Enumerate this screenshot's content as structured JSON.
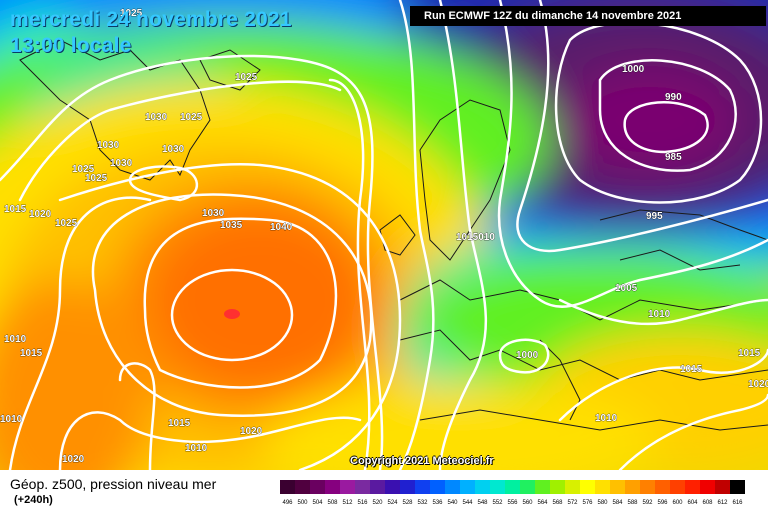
{
  "title": {
    "date": "mercredi 24 novembre 2021",
    "time": "13:00 locale"
  },
  "run_label": "Run ECMWF 12Z du dimanche 14 novembre 2021",
  "copyright": "Copyright 2021 Meteociel.fr",
  "description": "Géop. z500, pression niveau mer",
  "lead_time": "(+240h)",
  "isobar_labels": [
    {
      "id": "l1025a",
      "text": "1025"
    },
    {
      "id": "l1025b",
      "text": "1025"
    },
    {
      "id": "l1030a",
      "text": "1030"
    },
    {
      "id": "l1025c",
      "text": "1025"
    },
    {
      "id": "l1030b",
      "text": "1030"
    },
    {
      "id": "l1030c",
      "text": "1030"
    },
    {
      "id": "l1030d",
      "text": "1030"
    },
    {
      "id": "l1025d",
      "text": "1025"
    },
    {
      "id": "l1025e",
      "text": "1025"
    },
    {
      "id": "l1015a",
      "text": "1015"
    },
    {
      "id": "l1020a",
      "text": "1020"
    },
    {
      "id": "l1025f",
      "text": "1025"
    },
    {
      "id": "l1030e",
      "text": "1030"
    },
    {
      "id": "l1035",
      "text": "1035"
    },
    {
      "id": "l1040",
      "text": "1040"
    },
    {
      "id": "l1010a",
      "text": "1010"
    },
    {
      "id": "l1015b",
      "text": "1015"
    },
    {
      "id": "l1010b",
      "text": "1010"
    },
    {
      "id": "l1015c",
      "text": "1015"
    },
    {
      "id": "l1020b",
      "text": "1020"
    },
    {
      "id": "l1010c",
      "text": "1010"
    },
    {
      "id": "l1020c",
      "text": "1020"
    },
    {
      "id": "l1015010",
      "text": "1015010"
    },
    {
      "id": "l1000a",
      "text": "1000"
    },
    {
      "id": "l990",
      "text": "990"
    },
    {
      "id": "l985",
      "text": "985"
    },
    {
      "id": "l995",
      "text": "995"
    },
    {
      "id": "l1005",
      "text": "1005"
    },
    {
      "id": "l1010d",
      "text": "1010"
    },
    {
      "id": "l1000b",
      "text": "1000"
    },
    {
      "id": "l1015d",
      "text": "1015"
    },
    {
      "id": "l1015e",
      "text": "1015"
    },
    {
      "id": "l1010e",
      "text": "1010"
    },
    {
      "id": "l1020d",
      "text": "1020"
    }
  ],
  "color_scale": {
    "labels": [
      "496",
      "500",
      "504",
      "508",
      "512",
      "516",
      "520",
      "524",
      "528",
      "532",
      "536",
      "540",
      "544",
      "548",
      "552",
      "556",
      "560",
      "564",
      "568",
      "572",
      "576",
      "580",
      "584",
      "588",
      "592",
      "596",
      "600",
      "604",
      "608",
      "612",
      "616"
    ],
    "colors": [
      "#3a0030",
      "#50003f",
      "#6a0060",
      "#86007f",
      "#9a1aa0",
      "#7a2aa0",
      "#5a1aa0",
      "#3a10b0",
      "#2020d0",
      "#1040f0",
      "#0060ff",
      "#0088ff",
      "#00b0ff",
      "#00d0f0",
      "#00e8d0",
      "#00f0a0",
      "#20f060",
      "#60f020",
      "#a0f000",
      "#d8f000",
      "#ffff00",
      "#ffe000",
      "#ffc000",
      "#ffa000",
      "#ff8000",
      "#ff6000",
      "#ff4000",
      "#ff2000",
      "#f00000",
      "#c00000",
      "#000000"
    ]
  }
}
